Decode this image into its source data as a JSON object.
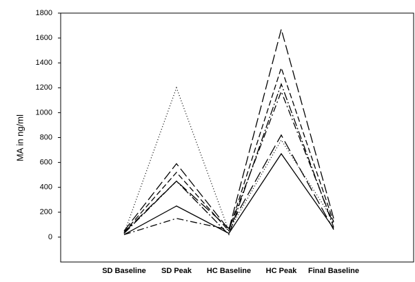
{
  "chart_data": {
    "type": "line",
    "y_label": "MA in ng/ml",
    "categories": [
      "SD Baseline",
      "SD Peak",
      "HC Baseline",
      "HC Peak",
      "Final Baseline"
    ],
    "ylim": [
      -200,
      1800
    ],
    "yticks": [
      0,
      200,
      400,
      600,
      800,
      1000,
      1200,
      1400,
      1600,
      1800
    ],
    "series": [
      {
        "color": "#000000",
        "dash": "none",
        "values": [
          20,
          250,
          30,
          670,
          70
        ]
      },
      {
        "color": "#000000",
        "dash": "10,4,2,4",
        "values": [
          20,
          150,
          60,
          1170,
          100
        ]
      },
      {
        "color": "#000000",
        "dash": "14,5",
        "values": [
          50,
          590,
          60,
          1670,
          150
        ]
      },
      {
        "color": "#000000",
        "dash": "8,4",
        "values": [
          40,
          520,
          50,
          1360,
          120
        ]
      },
      {
        "color": "#000000",
        "dash": "12,3,2,3",
        "values": [
          30,
          450,
          20,
          1230,
          80
        ]
      },
      {
        "color": "#000000",
        "dash": "16,6",
        "values": [
          40,
          450,
          70,
          820,
          60
        ]
      },
      {
        "color": "#000000",
        "dash": "1,3",
        "values": [
          30,
          1200,
          50,
          780,
          130
        ]
      }
    ]
  }
}
